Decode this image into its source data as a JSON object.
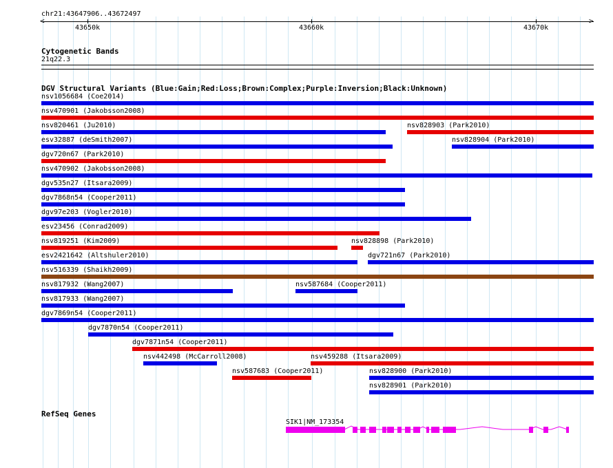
{
  "ruler": {
    "location": "chr21:43647906..43672497",
    "ticks": [
      "43650k",
      "43660k",
      "43670k"
    ]
  },
  "cytoband": {
    "title": "Cytogenetic Bands",
    "band": "21q22.3"
  },
  "dgv": {
    "title": "DGV Structural Variants (Blue:Gain;Red:Loss;Brown:Complex;Purple:Inversion;Black:Unknown)",
    "colors": {
      "gain": "#0000e6",
      "loss": "#e60000",
      "complex": "#8b4513"
    },
    "variants": [
      {
        "label": "nsv1056684 (Coe2014)",
        "type": "gain"
      },
      {
        "label": "nsv470901 (Jakobsson2008)",
        "type": "loss"
      },
      {
        "label": "nsv820461 (Ju2010)",
        "type": "gain"
      },
      {
        "label": "nsv828903 (Park2010)",
        "type": "loss"
      },
      {
        "label": "esv32887 (deSmith2007)",
        "type": "gain"
      },
      {
        "label": "nsv828904 (Park2010)",
        "type": "gain"
      },
      {
        "label": "dgv720n67 (Park2010)",
        "type": "loss"
      },
      {
        "label": "nsv470902 (Jakobsson2008)",
        "type": "gain"
      },
      {
        "label": "dgv535n27 (Itsara2009)",
        "type": "gain"
      },
      {
        "label": "dgv7868n54 (Cooper2011)",
        "type": "gain"
      },
      {
        "label": "dgv97e203 (Vogler2010)",
        "type": "gain"
      },
      {
        "label": "esv23456 (Conrad2009)",
        "type": "loss"
      },
      {
        "label": "nsv819251 (Kim2009)",
        "type": "loss"
      },
      {
        "label": "nsv828898 (Park2010)",
        "type": "loss"
      },
      {
        "label": "esv2421642 (Altshuler2010)",
        "type": "gain"
      },
      {
        "label": "dgv721n67 (Park2010)",
        "type": "gain"
      },
      {
        "label": "nsv516339 (Shaikh2009)",
        "type": "complex"
      },
      {
        "label": "nsv817932 (Wang2007)",
        "type": "gain"
      },
      {
        "label": "nsv587684 (Cooper2011)",
        "type": "gain"
      },
      {
        "label": "nsv817933 (Wang2007)",
        "type": "gain"
      },
      {
        "label": "dgv7869n54 (Cooper2011)",
        "type": "gain"
      },
      {
        "label": "dgv7870n54 (Cooper2011)",
        "type": "gain"
      },
      {
        "label": "dgv7871n54 (Cooper2011)",
        "type": "loss"
      },
      {
        "label": "nsv442498 (McCarroll2008)",
        "type": "gain"
      },
      {
        "label": "nsv459288 (Itsara2009)",
        "type": "loss"
      },
      {
        "label": "nsv587683 (Cooper2011)",
        "type": "loss"
      },
      {
        "label": "nsv828900 (Park2010)",
        "type": "gain"
      },
      {
        "label": "nsv828901 (Park2010)",
        "type": "gain"
      }
    ]
  },
  "refseq": {
    "title": "RefSeq Genes",
    "gene_label": "SIK1|NM_173354",
    "color": "#ee00ee"
  }
}
